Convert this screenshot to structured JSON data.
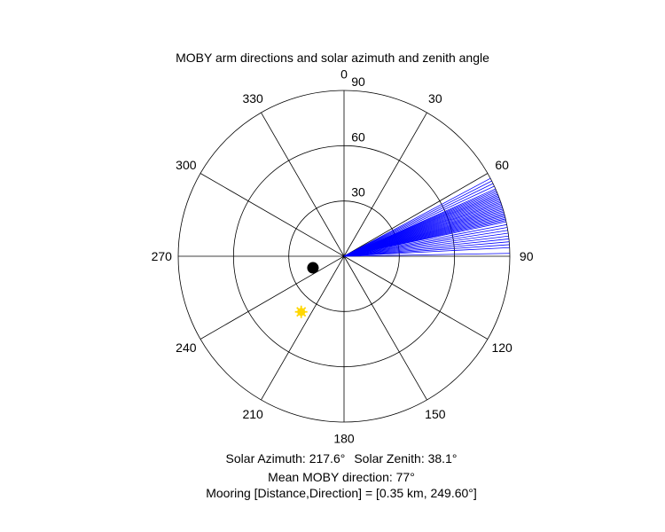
{
  "chart_data": {
    "type": "polar",
    "title": "MOBY arm directions and solar azimuth and zenith angle",
    "angle_direction": "clockwise",
    "zero_at": "top",
    "angle_ticks": [
      0,
      30,
      60,
      90,
      120,
      150,
      180,
      210,
      240,
      270,
      300,
      330
    ],
    "radial_axis": {
      "max": 90,
      "ticks": [
        30,
        60,
        90
      ],
      "label_angle": 0
    },
    "arm_direction_lines": [
      62,
      63,
      64,
      65,
      66,
      66.5,
      67,
      67.5,
      68,
      68.5,
      69,
      69.5,
      70,
      70.5,
      71,
      71.5,
      72,
      72.5,
      73,
      73.5,
      74,
      74.5,
      75,
      75.5,
      76,
      76.5,
      77,
      77.5,
      78,
      79,
      80,
      81,
      82,
      83,
      84,
      85,
      86,
      87,
      89
    ],
    "points": [
      {
        "azimuth": 249.6,
        "radius": 18,
        "color": "#000000",
        "marker": "circle"
      },
      {
        "azimuth": 217.6,
        "radius": 38.1,
        "color": "#FFD700",
        "marker": "sun"
      }
    ],
    "colors": {
      "arm_lines": "#0000FF",
      "grid": "#000000"
    }
  },
  "captions": {
    "solar_azimuth": "Solar Azimuth: 217.6°",
    "solar_zenith": "Solar Zenith: 38.1°",
    "mean_direction": "Mean MOBY direction: 77°",
    "mooring": "Mooring [Distance,Direction] = [0.35 km, 249.60°]"
  }
}
